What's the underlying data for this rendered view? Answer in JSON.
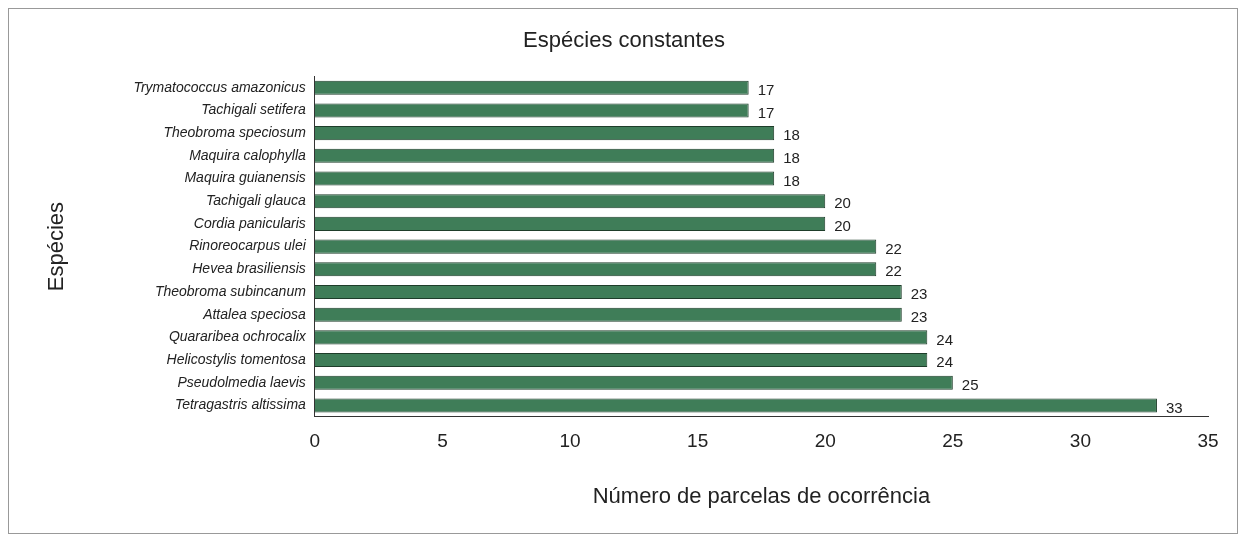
{
  "chart_data": {
    "type": "bar",
    "orientation": "horizontal",
    "title": "Espécies constantes",
    "xlabel": "Número de parcelas de ocorrência",
    "ylabel": "Espécies",
    "categories": [
      "Trymatococcus amazonicus",
      "Tachigali setifera",
      "Theobroma speciosum",
      "Maquira calophylla",
      "Maquira guianensis",
      "Tachigali glauca",
      "Cordia panicularis",
      "Rinoreocarpus ulei",
      "Hevea brasiliensis",
      "Theobroma subincanum",
      "Attalea speciosa",
      "Quararibea ochrocalix",
      "Helicostylis tomentosa",
      "Pseudolmedia laevis",
      "Tetragastris altissima"
    ],
    "values": [
      17,
      17,
      18,
      18,
      18,
      20,
      20,
      22,
      22,
      23,
      23,
      24,
      24,
      25,
      33
    ],
    "color": "#3f7d58",
    "xlim": [
      0,
      35
    ],
    "xticks": [
      0,
      5,
      10,
      15,
      20,
      25,
      30,
      35
    ],
    "data_labels": true
  }
}
